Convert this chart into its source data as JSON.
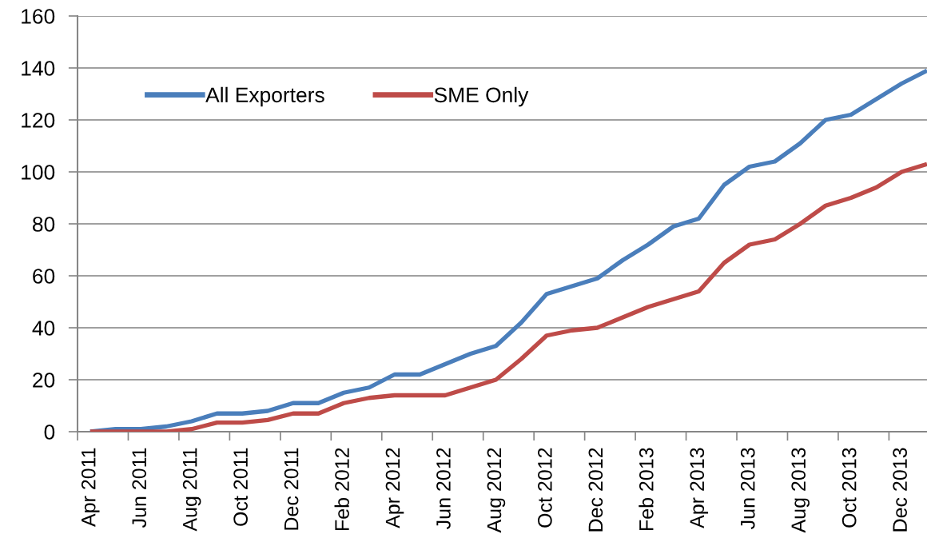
{
  "chart_data": {
    "type": "line",
    "categories": [
      "Apr 2011",
      null,
      "Jun 2011",
      null,
      "Aug 2011",
      null,
      "Oct 2011",
      null,
      "Dec 2011",
      null,
      "Feb 2012",
      null,
      "Apr 2012",
      null,
      "Jun 2012",
      null,
      "Aug 2012",
      null,
      "Oct 2012",
      null,
      "Dec 2012",
      null,
      "Feb 2013",
      null,
      "Apr 2013",
      null,
      "Jun 2013",
      null,
      "Aug 2013",
      null,
      "Oct 2013",
      null,
      "Dec 2013",
      null
    ],
    "series": [
      {
        "name": "All Exporters",
        "color": "#4a7ebb",
        "values": [
          0,
          1,
          1,
          2,
          4,
          7,
          7,
          8,
          11,
          11,
          15,
          17,
          22,
          22,
          26,
          30,
          33,
          42,
          53,
          56,
          59,
          66,
          72,
          79,
          82,
          95,
          102,
          104,
          111,
          120,
          122,
          128,
          134,
          139
        ]
      },
      {
        "name": "SME Only",
        "color": "#be4b48",
        "values": [
          0,
          0,
          0,
          0,
          1,
          3.5,
          3.5,
          4.5,
          7,
          7,
          11,
          13,
          14,
          14,
          14,
          17,
          20,
          28,
          37,
          39,
          40,
          44,
          48,
          51,
          54,
          65,
          72,
          74,
          80,
          87,
          90,
          94,
          100,
          103
        ]
      }
    ],
    "ylim": [
      0,
      160
    ],
    "yticks": [
      0,
      20,
      40,
      60,
      80,
      100,
      120,
      140,
      160
    ],
    "grid": "y",
    "legend": "top left",
    "marker": "none",
    "line_style": "solid"
  }
}
